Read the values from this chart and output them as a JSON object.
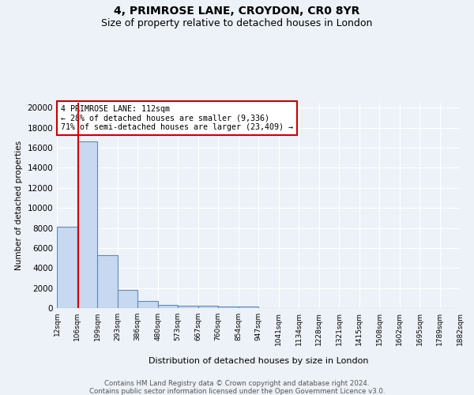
{
  "title1": "4, PRIMROSE LANE, CROYDON, CR0 8YR",
  "title2": "Size of property relative to detached houses in London",
  "xlabel": "Distribution of detached houses by size in London",
  "ylabel": "Number of detached properties",
  "bin_labels": [
    "12sqm",
    "106sqm",
    "199sqm",
    "293sqm",
    "386sqm",
    "480sqm",
    "573sqm",
    "667sqm",
    "760sqm",
    "854sqm",
    "947sqm",
    "1041sqm",
    "1134sqm",
    "1228sqm",
    "1321sqm",
    "1415sqm",
    "1508sqm",
    "1602sqm",
    "1695sqm",
    "1789sqm",
    "1882sqm"
  ],
  "bin_edges": [
    12,
    106,
    199,
    293,
    386,
    480,
    573,
    667,
    760,
    854,
    947,
    1041,
    1134,
    1228,
    1321,
    1415,
    1508,
    1602,
    1695,
    1789,
    1882
  ],
  "bar_heights": [
    8100,
    16600,
    5300,
    1850,
    700,
    320,
    230,
    210,
    190,
    160,
    0,
    0,
    0,
    0,
    0,
    0,
    0,
    0,
    0,
    0
  ],
  "bar_color": "#c8d8f0",
  "bar_edge_color": "#5b8db8",
  "property_line_x": 112,
  "property_line_color": "#cc0000",
  "annotation_text": "4 PRIMROSE LANE: 112sqm\n← 28% of detached houses are smaller (9,336)\n71% of semi-detached houses are larger (23,409) →",
  "annotation_box_color": "#ffffff",
  "annotation_box_edge": "#cc0000",
  "ylim": [
    0,
    20500
  ],
  "yticks": [
    0,
    2000,
    4000,
    6000,
    8000,
    10000,
    12000,
    14000,
    16000,
    18000,
    20000
  ],
  "footer1": "Contains HM Land Registry data © Crown copyright and database right 2024.",
  "footer2": "Contains public sector information licensed under the Open Government Licence v3.0.",
  "bg_color": "#edf2f8",
  "plot_bg_color": "#edf2f8",
  "grid_color": "#ffffff",
  "title1_fontsize": 10,
  "title2_fontsize": 9
}
